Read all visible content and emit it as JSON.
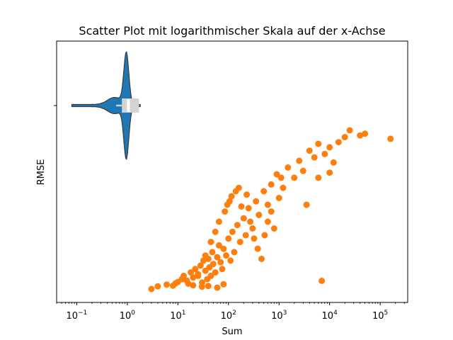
{
  "chart_data": {
    "type": "scatter",
    "title": "Scatter Plot mit logarithmischer Skala auf der x-Achse",
    "xlabel": "Sum",
    "ylabel": "RMSE",
    "xscale": "log",
    "xlim": [
      0.04,
      350000
    ],
    "x_ticks": [
      {
        "value": 0.1,
        "base": "10",
        "exp": "−1"
      },
      {
        "value": 1,
        "base": "10",
        "exp": "0"
      },
      {
        "value": 10,
        "base": "10",
        "exp": "1"
      },
      {
        "value": 100,
        "base": "10",
        "exp": "2"
      },
      {
        "value": 1000,
        "base": "10",
        "exp": "3"
      },
      {
        "value": 10000,
        "base": "10",
        "exp": "4"
      },
      {
        "value": 100000,
        "base": "10",
        "exp": "5"
      }
    ],
    "grid": false,
    "colors": {
      "scatter": "#ff7f0e",
      "violin_fill": "#1f77b4",
      "violin_edge": "#3a3a3a",
      "box": "#d3d3d3"
    },
    "violin": {
      "orientation": "horizontal",
      "x_min": 0.08,
      "x_max": 1.8,
      "box_q1": 0.78,
      "box_median": 1.05,
      "box_q3": 1.7
    },
    "points": [
      [
        3,
        1
      ],
      [
        4,
        9
      ],
      [
        6,
        14
      ],
      [
        8,
        11
      ],
      [
        9,
        18
      ],
      [
        10,
        22
      ],
      [
        12,
        30
      ],
      [
        13,
        40
      ],
      [
        15,
        26
      ],
      [
        16,
        17
      ],
      [
        18,
        50
      ],
      [
        20,
        35
      ],
      [
        22,
        60
      ],
      [
        25,
        45
      ],
      [
        28,
        70
      ],
      [
        30,
        20
      ],
      [
        32,
        85
      ],
      [
        35,
        55
      ],
      [
        38,
        30
      ],
      [
        40,
        90
      ],
      [
        42,
        65
      ],
      [
        45,
        40
      ],
      [
        48,
        110
      ],
      [
        50,
        75
      ],
      [
        55,
        50
      ],
      [
        60,
        95
      ],
      [
        65,
        130
      ],
      [
        70,
        80
      ],
      [
        75,
        60
      ],
      [
        80,
        120
      ],
      [
        90,
        100
      ],
      [
        100,
        150
      ],
      [
        110,
        85
      ],
      [
        120,
        170
      ],
      [
        130,
        110
      ],
      [
        150,
        190
      ],
      [
        170,
        140
      ],
      [
        200,
        210
      ],
      [
        220,
        160
      ],
      [
        250,
        240
      ],
      [
        300,
        180
      ],
      [
        350,
        260
      ],
      [
        400,
        220
      ],
      [
        500,
        290
      ],
      [
        600,
        250
      ],
      [
        700,
        310
      ],
      [
        900,
        340
      ],
      [
        1200,
        300
      ],
      [
        1500,
        360
      ],
      [
        2000,
        330
      ],
      [
        2500,
        380
      ],
      [
        3000,
        350
      ],
      [
        4000,
        410
      ],
      [
        5000,
        390
      ],
      [
        6000,
        430
      ],
      [
        8000,
        400
      ],
      [
        10000,
        420
      ],
      [
        12000,
        375
      ],
      [
        15000,
        435
      ],
      [
        20000,
        450
      ],
      [
        25000,
        470
      ],
      [
        40000,
        455
      ],
      [
        50000,
        460
      ],
      [
        160000,
        445
      ],
      [
        7000,
        25
      ],
      [
        3500,
        250
      ],
      [
        10000,
        345
      ],
      [
        6000,
        330
      ],
      [
        40,
        10
      ],
      [
        60,
        5
      ],
      [
        80,
        15
      ],
      [
        30,
        8
      ],
      [
        20,
        12
      ],
      [
        25,
        40
      ],
      [
        35,
        100
      ],
      [
        45,
        140
      ],
      [
        55,
        170
      ],
      [
        65,
        200
      ],
      [
        85,
        230
      ],
      [
        95,
        250
      ],
      [
        105,
        260
      ],
      [
        115,
        275
      ],
      [
        140,
        290
      ],
      [
        160,
        300
      ],
      [
        180,
        245
      ],
      [
        230,
        280
      ],
      [
        270,
        200
      ],
      [
        320,
        150
      ],
      [
        380,
        120
      ],
      [
        450,
        90
      ],
      [
        520,
        160
      ],
      [
        600,
        200
      ],
      [
        700,
        230
      ],
      [
        800,
        180
      ],
      [
        1000,
        270
      ],
      [
        1100,
        330
      ]
    ]
  }
}
